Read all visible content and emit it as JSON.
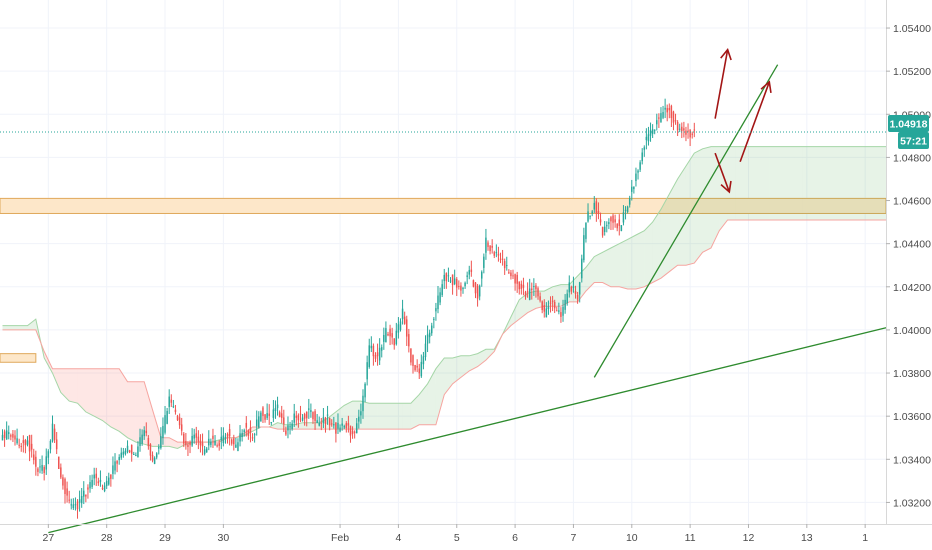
{
  "chart_data": {
    "type": "candlestick",
    "instrument_note": "",
    "y_axis": {
      "side": "right",
      "ylim": [
        1.031,
        1.0553
      ],
      "ticks": [
        "1.05400",
        "1.05200",
        "1.05000",
        "1.04800",
        "1.04600",
        "1.04400",
        "1.04200",
        "1.04000",
        "1.03800",
        "1.03600",
        "1.03400",
        "1.03200"
      ]
    },
    "x_axis": {
      "ticks": [
        {
          "label": "27",
          "pos": 0.5
        },
        {
          "label": "28",
          "pos": 7.5
        },
        {
          "label": "29",
          "pos": 14.5
        },
        {
          "label": "30",
          "pos": 21.5
        },
        {
          "label": "Feb",
          "pos": 35.5
        },
        {
          "label": "4",
          "pos": 42.5
        },
        {
          "label": "5",
          "pos": 49.5
        },
        {
          "label": "6",
          "pos": 56.5
        },
        {
          "label": "7",
          "pos": 63.5
        },
        {
          "label": "10",
          "pos": 70.5
        },
        {
          "label": "11",
          "pos": 77.5
        },
        {
          "label": "12",
          "pos": 84.5
        },
        {
          "label": "13",
          "pos": 91.5
        },
        {
          "label": "1",
          "pos": 98.5
        }
      ],
      "xlim": [
        -5.3,
        101
      ]
    },
    "last_price": {
      "value": 1.04918,
      "label": "1.04918",
      "countdown": "57:21",
      "color": "#26a69a"
    },
    "colors": {
      "up": "#26a69a",
      "down": "#ef5350",
      "trendline": "#2e8b2e",
      "arrow": "#a31515",
      "zone_fill": "#fde7c9",
      "zone_border": "#e0a95c"
    },
    "support_zone": {
      "top": 1.0461,
      "bottom": 1.0454
    },
    "left_zone": {
      "top": 1.0389,
      "bottom": 1.0385,
      "x0": -5.3,
      "x1": -1
    },
    "series": [
      {
        "name": "",
        "kind": "close_path",
        "x": [
          -5,
          -4,
          -3,
          -2,
          -1,
          0,
          1,
          2,
          3,
          4,
          5,
          6,
          7,
          8,
          9,
          10,
          11,
          12,
          13,
          14,
          15,
          16,
          17,
          18,
          19,
          20,
          21,
          22,
          23,
          24,
          25,
          26,
          27,
          28,
          29,
          30,
          31,
          32,
          33,
          34,
          35,
          36,
          37,
          38,
          39,
          40,
          41,
          42,
          43,
          44,
          45,
          46,
          47,
          48,
          49,
          50,
          51,
          52,
          53,
          54,
          55,
          56,
          57,
          58,
          59,
          60,
          61,
          62,
          63,
          64,
          65,
          66,
          67,
          68,
          69,
          70,
          71,
          72,
          73,
          74,
          75,
          76,
          77,
          78
        ],
        "values": [
          1.0351,
          1.0352,
          1.0346,
          1.0349,
          1.0336,
          1.0335,
          1.0355,
          1.0332,
          1.0319,
          1.0318,
          1.0325,
          1.0332,
          1.0327,
          1.0333,
          1.0342,
          1.0346,
          1.0343,
          1.0354,
          1.034,
          1.0349,
          1.0368,
          1.036,
          1.0345,
          1.0351,
          1.0344,
          1.0349,
          1.0347,
          1.0352,
          1.0346,
          1.0355,
          1.035,
          1.0363,
          1.0358,
          1.0364,
          1.0352,
          1.0359,
          1.036,
          1.0362,
          1.0356,
          1.0359,
          1.0354,
          1.0357,
          1.0352,
          1.0361,
          1.0392,
          1.0386,
          1.04,
          1.0395,
          1.0408,
          1.0387,
          1.038,
          1.0396,
          1.041,
          1.0425,
          1.0423,
          1.0419,
          1.0428,
          1.0416,
          1.0441,
          1.0436,
          1.0431,
          1.0426,
          1.0421,
          1.0416,
          1.042,
          1.0408,
          1.0413,
          1.0406,
          1.0421,
          1.0415,
          1.0452,
          1.0458,
          1.0446,
          1.0452,
          1.0448,
          1.0459,
          1.0472,
          1.0486,
          1.0493,
          1.05,
          1.0502,
          1.0494,
          1.0491,
          1.0492
        ]
      },
      {
        "name": "",
        "kind": "cloud_span_a",
        "x": [
          -5,
          -4,
          -3,
          -2,
          -1,
          0,
          1,
          2,
          3,
          4,
          5,
          6,
          7,
          8,
          9,
          10,
          11,
          12,
          13,
          14,
          15,
          16,
          17,
          18,
          19,
          20,
          21,
          22,
          23,
          24,
          25,
          26,
          27,
          28,
          29,
          30,
          31,
          32,
          33,
          34,
          35,
          36,
          37,
          38,
          39,
          40,
          41,
          42,
          43,
          44,
          45,
          46,
          47,
          48,
          49,
          50,
          51,
          52,
          53,
          54,
          55,
          56,
          57,
          58,
          59,
          60,
          61,
          62,
          63,
          64,
          65,
          66,
          67,
          68,
          69,
          70,
          71,
          72,
          73,
          74,
          75,
          76,
          77,
          78,
          79,
          80,
          81,
          82,
          83,
          84,
          85,
          86,
          87,
          88,
          89,
          90,
          91,
          92,
          93,
          94,
          95,
          96,
          97,
          98,
          99,
          100,
          101
        ],
        "values": [
          1.0402,
          1.0402,
          1.0402,
          1.0402,
          1.0405,
          1.0387,
          1.038,
          1.0371,
          1.0367,
          1.0366,
          1.0362,
          1.036,
          1.0358,
          1.0355,
          1.0353,
          1.035,
          1.0348,
          1.0347,
          1.0346,
          1.0346,
          1.0346,
          1.0345,
          1.0347,
          1.0348,
          1.0348,
          1.0348,
          1.0349,
          1.035,
          1.035,
          1.0351,
          1.0353,
          1.0355,
          1.0355,
          1.0357,
          1.0356,
          1.0356,
          1.0357,
          1.0357,
          1.0357,
          1.0359,
          1.0362,
          1.0365,
          1.0367,
          1.0367,
          1.0366,
          1.0366,
          1.0366,
          1.0366,
          1.0366,
          1.0366,
          1.037,
          1.0375,
          1.0382,
          1.0387,
          1.0387,
          1.0388,
          1.0388,
          1.0389,
          1.0391,
          1.0391,
          1.0398,
          1.0406,
          1.0414,
          1.0417,
          1.0418,
          1.0418,
          1.042,
          1.0421,
          1.0421,
          1.0425,
          1.0429,
          1.0434,
          1.0436,
          1.0438,
          1.044,
          1.0442,
          1.0444,
          1.0446,
          1.045,
          1.0456,
          1.0463,
          1.047,
          1.0476,
          1.0482,
          1.0484,
          1.0485,
          1.0485,
          1.0485,
          1.0485,
          1.0485,
          1.0485,
          1.0485,
          1.0485,
          1.0485,
          1.0485,
          1.0485,
          1.0485,
          1.0485,
          1.0485,
          1.0485,
          1.0485,
          1.0485,
          1.0485,
          1.0485,
          1.0485,
          1.0485,
          1.0485
        ]
      },
      {
        "name": "",
        "kind": "cloud_span_b",
        "x": [
          -5,
          -4,
          -3,
          -2,
          -1,
          0,
          1,
          2,
          3,
          4,
          5,
          6,
          7,
          8,
          9,
          10,
          11,
          12,
          13,
          14,
          15,
          16,
          17,
          18,
          19,
          20,
          21,
          22,
          23,
          24,
          25,
          26,
          27,
          28,
          29,
          30,
          31,
          32,
          33,
          34,
          35,
          36,
          37,
          38,
          39,
          40,
          41,
          42,
          43,
          44,
          45,
          46,
          47,
          48,
          49,
          50,
          51,
          52,
          53,
          54,
          55,
          56,
          57,
          58,
          59,
          60,
          61,
          62,
          63,
          64,
          65,
          66,
          67,
          68,
          69,
          70,
          71,
          72,
          73,
          74,
          75,
          76,
          77,
          78,
          79,
          80,
          81,
          82,
          83,
          84,
          85,
          86,
          87,
          88,
          89,
          90,
          91,
          92,
          93,
          94,
          95,
          96,
          97,
          98,
          99,
          100,
          101
        ],
        "values": [
          1.04,
          1.04,
          1.04,
          1.04,
          1.04,
          1.039,
          1.0382,
          1.0382,
          1.0382,
          1.0382,
          1.0382,
          1.0382,
          1.0382,
          1.0382,
          1.0382,
          1.0376,
          1.0376,
          1.0376,
          1.0363,
          1.035,
          1.035,
          1.0348,
          1.0348,
          1.0348,
          1.0348,
          1.0348,
          1.0348,
          1.035,
          1.035,
          1.0352,
          1.0355,
          1.0355,
          1.0355,
          1.0354,
          1.0354,
          1.0354,
          1.0354,
          1.0354,
          1.0354,
          1.0354,
          1.0354,
          1.0354,
          1.0354,
          1.0354,
          1.0354,
          1.0354,
          1.0354,
          1.0354,
          1.0354,
          1.0354,
          1.0356,
          1.0356,
          1.0356,
          1.037,
          1.0375,
          1.0378,
          1.0381,
          1.0383,
          1.0386,
          1.039,
          1.0398,
          1.0402,
          1.0405,
          1.0408,
          1.041,
          1.0411,
          1.0411,
          1.0411,
          1.0413,
          1.0413,
          1.0418,
          1.0422,
          1.0422,
          1.042,
          1.042,
          1.0419,
          1.0419,
          1.042,
          1.0422,
          1.0424,
          1.0427,
          1.043,
          1.043,
          1.0431,
          1.0436,
          1.0438,
          1.0446,
          1.0451,
          1.0451,
          1.0451,
          1.0451,
          1.0451,
          1.0451,
          1.0451,
          1.0451,
          1.0451,
          1.0451,
          1.0451,
          1.0451,
          1.0451,
          1.0451,
          1.0451,
          1.0451,
          1.0451,
          1.0451,
          1.0451,
          1.0451
        ]
      }
    ],
    "trendlines": [
      {
        "name": "",
        "points": [
          [
            0.5,
            1.0306
          ],
          [
            101,
            1.0401
          ]
        ]
      },
      {
        "name": "",
        "points": [
          [
            66,
            1.0378
          ],
          [
            88,
            1.0523
          ]
        ]
      }
    ],
    "arrows": [
      {
        "points": [
          [
            80.5,
            1.0498
          ],
          [
            82,
            1.053
          ]
        ]
      },
      {
        "points": [
          [
            80.5,
            1.0482
          ],
          [
            82.2,
            1.0464
          ]
        ]
      },
      {
        "points": [
          [
            83.5,
            1.0478
          ],
          [
            87,
            1.0515
          ]
        ]
      }
    ]
  }
}
